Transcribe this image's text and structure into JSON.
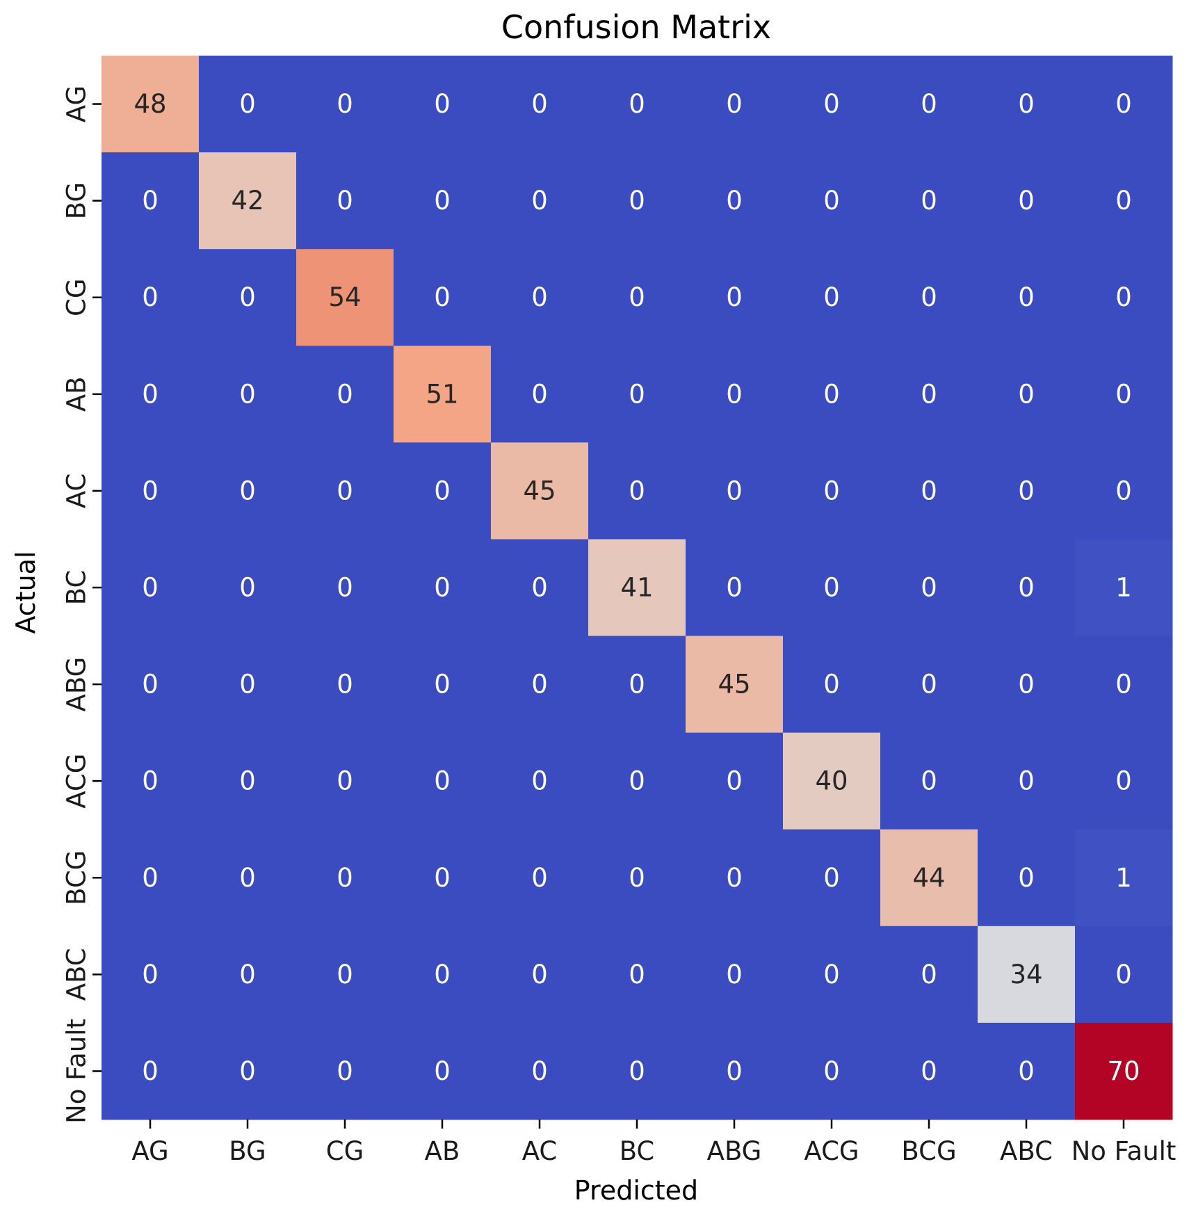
{
  "chart_data": {
    "type": "heatmap",
    "title": "Confusion Matrix",
    "xlabel": "Predicted",
    "ylabel": "Actual",
    "colormap": "coolwarm",
    "color_range": [
      0,
      70
    ],
    "colorbar": false,
    "x_categories": [
      "AG",
      "BG",
      "CG",
      "AB",
      "AC",
      "BC",
      "ABG",
      "ACG",
      "BCG",
      "ABC",
      "No Fault"
    ],
    "y_categories": [
      "AG",
      "BG",
      "CG",
      "AB",
      "AC",
      "BC",
      "ABG",
      "ACG",
      "BCG",
      "ABC",
      "No Fault"
    ],
    "values": [
      [
        48,
        0,
        0,
        0,
        0,
        0,
        0,
        0,
        0,
        0,
        0
      ],
      [
        0,
        42,
        0,
        0,
        0,
        0,
        0,
        0,
        0,
        0,
        0
      ],
      [
        0,
        0,
        54,
        0,
        0,
        0,
        0,
        0,
        0,
        0,
        0
      ],
      [
        0,
        0,
        0,
        51,
        0,
        0,
        0,
        0,
        0,
        0,
        0
      ],
      [
        0,
        0,
        0,
        0,
        45,
        0,
        0,
        0,
        0,
        0,
        0
      ],
      [
        0,
        0,
        0,
        0,
        0,
        41,
        0,
        0,
        0,
        0,
        1
      ],
      [
        0,
        0,
        0,
        0,
        0,
        0,
        45,
        0,
        0,
        0,
        0
      ],
      [
        0,
        0,
        0,
        0,
        0,
        0,
        0,
        40,
        0,
        0,
        0
      ],
      [
        0,
        0,
        0,
        0,
        0,
        0,
        0,
        0,
        44,
        0,
        1
      ],
      [
        0,
        0,
        0,
        0,
        0,
        0,
        0,
        0,
        0,
        34,
        0
      ],
      [
        0,
        0,
        0,
        0,
        0,
        0,
        0,
        0,
        0,
        0,
        70
      ]
    ]
  }
}
